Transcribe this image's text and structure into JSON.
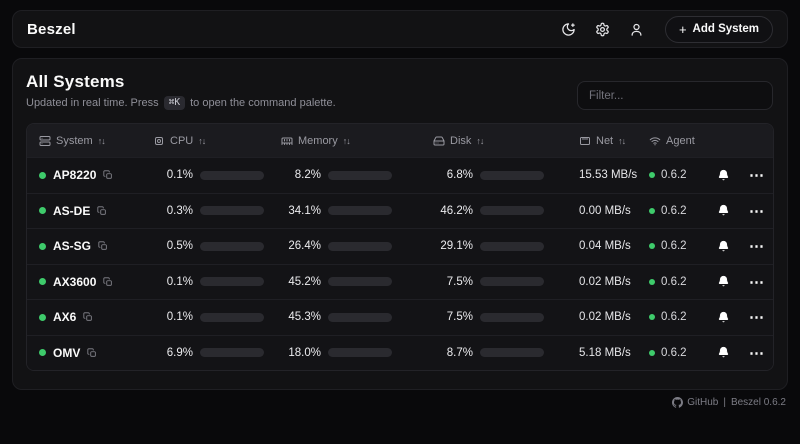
{
  "colors": {
    "green_dot": "#3ecb6b",
    "green_bar": "#36c35f",
    "bar_track": "#2a2a2f"
  },
  "header": {
    "brand": "Beszel",
    "add_system": {
      "plus": "+",
      "label": "Add System"
    }
  },
  "page": {
    "title": "All Systems",
    "subtitle_prefix": "Updated in real time. Press",
    "kbd": "⌘K",
    "subtitle_suffix": "to open the command palette.",
    "filter_placeholder": "Filter..."
  },
  "icons": {
    "sort_indicator": "↑↓",
    "more": "⋯"
  },
  "table": {
    "columns": [
      {
        "id": "system",
        "label": "System",
        "icon": "server-icon",
        "sortable": true
      },
      {
        "id": "cpu",
        "label": "CPU",
        "icon": "cpu-icon",
        "sortable": true
      },
      {
        "id": "memory",
        "label": "Memory",
        "icon": "memory-icon",
        "sortable": true
      },
      {
        "id": "disk",
        "label": "Disk",
        "icon": "hard-drive-icon",
        "sortable": true
      },
      {
        "id": "net",
        "label": "Net",
        "icon": "ethernet-icon",
        "sortable": true
      },
      {
        "id": "agent",
        "label": "Agent",
        "icon": "wifi-icon",
        "sortable": false
      }
    ],
    "rows": [
      {
        "name": "AP8220",
        "cpu": {
          "label": "0.1%",
          "percent": 0.1
        },
        "memory": {
          "label": "8.2%",
          "percent": 8.2
        },
        "disk": {
          "label": "6.8%",
          "percent": 6.8
        },
        "net": "15.53 MB/s",
        "agent": "0.6.2"
      },
      {
        "name": "AS-DE",
        "cpu": {
          "label": "0.3%",
          "percent": 0.3
        },
        "memory": {
          "label": "34.1%",
          "percent": 34.1
        },
        "disk": {
          "label": "46.2%",
          "percent": 46.2
        },
        "net": "0.00 MB/s",
        "agent": "0.6.2"
      },
      {
        "name": "AS-SG",
        "cpu": {
          "label": "0.5%",
          "percent": 0.5
        },
        "memory": {
          "label": "26.4%",
          "percent": 26.4
        },
        "disk": {
          "label": "29.1%",
          "percent": 29.1
        },
        "net": "0.04 MB/s",
        "agent": "0.6.2"
      },
      {
        "name": "AX3600",
        "cpu": {
          "label": "0.1%",
          "percent": 0.1
        },
        "memory": {
          "label": "45.2%",
          "percent": 45.2
        },
        "disk": {
          "label": "7.5%",
          "percent": 7.5
        },
        "net": "0.02 MB/s",
        "agent": "0.6.2"
      },
      {
        "name": "AX6",
        "cpu": {
          "label": "0.1%",
          "percent": 0.1
        },
        "memory": {
          "label": "45.3%",
          "percent": 45.3
        },
        "disk": {
          "label": "7.5%",
          "percent": 7.5
        },
        "net": "0.02 MB/s",
        "agent": "0.6.2"
      },
      {
        "name": "OMV",
        "cpu": {
          "label": "6.9%",
          "percent": 6.9
        },
        "memory": {
          "label": "18.0%",
          "percent": 18.0
        },
        "disk": {
          "label": "8.7%",
          "percent": 8.7
        },
        "net": "5.18 MB/s",
        "agent": "0.6.2"
      }
    ]
  },
  "footer": {
    "github_label": "GitHub",
    "separator": "|",
    "version": "Beszel 0.6.2"
  }
}
